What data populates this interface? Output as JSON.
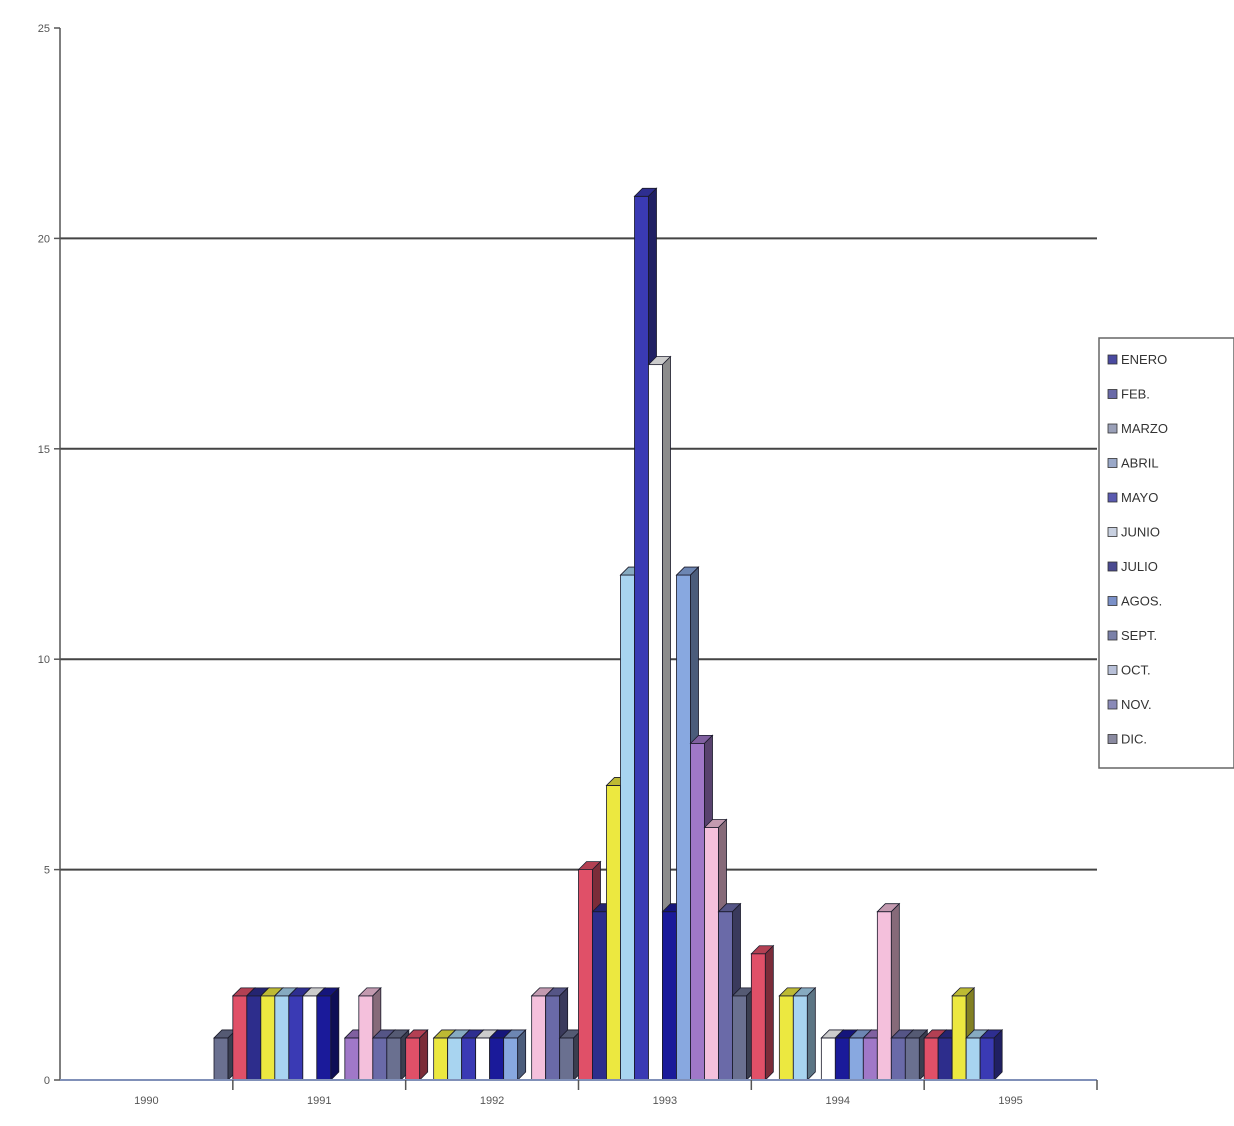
{
  "chart_data": {
    "type": "bar",
    "categories": [
      "1990",
      "1991",
      "1992",
      "1993",
      "1994",
      "1995"
    ],
    "months": [
      "ENERO",
      "FEB.",
      "MARZO",
      "ABRIL",
      "MAYO",
      "JUNIO",
      "JULIO",
      "AGOS.",
      "SEPT.",
      "OCT.",
      "NOV.",
      "DIC."
    ],
    "ylim": [
      0,
      25
    ],
    "yticks": [
      "0",
      "5",
      "10",
      "15",
      "20",
      "25"
    ],
    "grid": true,
    "legend_position": "right",
    "values": [
      [
        0,
        0,
        0,
        0,
        0,
        0,
        0,
        0,
        0,
        0,
        0,
        1
      ],
      [
        2,
        2,
        2,
        2,
        2,
        2,
        2,
        0,
        1,
        2,
        1,
        1
      ],
      [
        1,
        0,
        1,
        1,
        1,
        1,
        1,
        1,
        0,
        2,
        2,
        1
      ],
      [
        5,
        4,
        7,
        12,
        21,
        17,
        4,
        12,
        8,
        6,
        4,
        2
      ],
      [
        3,
        0,
        2,
        2,
        0,
        1,
        1,
        1,
        1,
        4,
        1,
        1
      ],
      [
        1,
        1,
        2,
        1,
        1,
        0,
        0,
        0,
        0,
        0,
        0,
        0
      ]
    ],
    "colors": [
      "#e05068",
      "#2d2d8c",
      "#ece840",
      "#a8d4f0",
      "#3a3ab4",
      "#ffffff",
      "#1a1a9a",
      "#88a8e0",
      "#a078c8",
      "#f4c0dc",
      "#6a6aa8",
      "#6a7090"
    ],
    "legend_colors": [
      "#4a4aa0",
      "#6a6aa8",
      "#9aa0b8",
      "#9aa8c8",
      "#5a5ab0",
      "#c8d0e0",
      "#4a4a90",
      "#7a90c8",
      "#7a80a8",
      "#b8c0d8",
      "#8a8ab8",
      "#8a8aa0"
    ]
  }
}
